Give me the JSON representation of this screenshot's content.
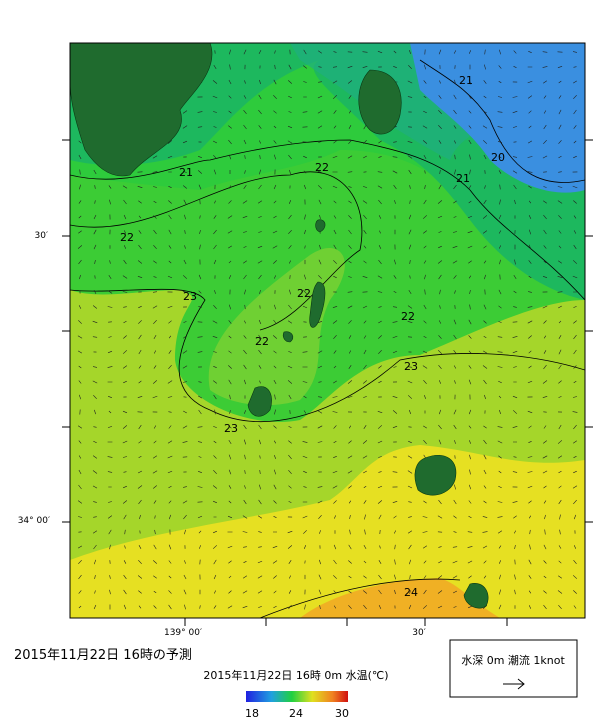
{
  "title": "2015年11月22日 16時の予測",
  "map": {
    "y_labels": [
      "30′",
      "34° 00′"
    ],
    "x_labels": [
      "139° 00′",
      "30′"
    ],
    "contour_labels": [
      21,
      20,
      21,
      21,
      22,
      22,
      22,
      22,
      22,
      23,
      23,
      23,
      24
    ]
  },
  "colorbar": {
    "title": "2015年11月22日 16時 0m 水温(℃)",
    "ticks": [
      18,
      24,
      30
    ]
  },
  "legend": {
    "label": "水深 0m 潮流 1knot"
  }
}
